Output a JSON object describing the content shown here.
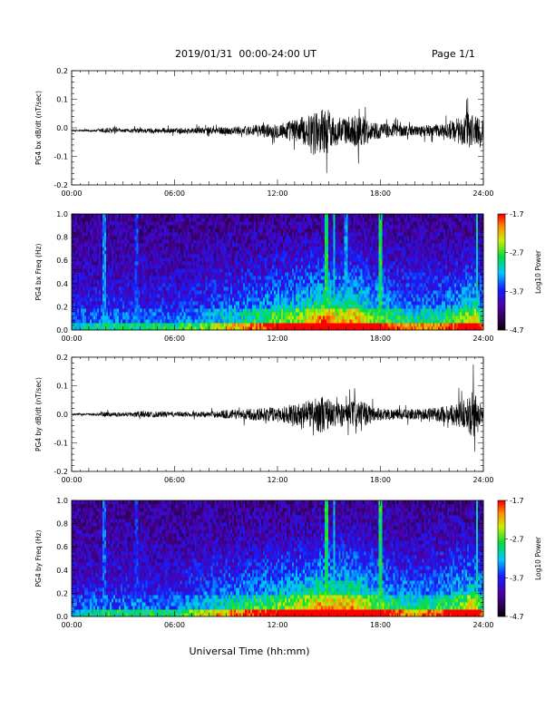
{
  "header": {
    "title": "2019/01/31  00:00-24:00 UT",
    "page": "Page 1/1"
  },
  "chart_data": [
    {
      "type": "line",
      "ylabel": "PG4 bx dB/dt (nT/sec)",
      "xlim": [
        0,
        24
      ],
      "ylim": [
        -0.2,
        0.2
      ],
      "x_ticks": [
        "00:00",
        "06:00",
        "12:00",
        "18:00",
        "24:00"
      ],
      "y_ticks": [
        "-0.2",
        "-0.1",
        "0.0",
        "0.1",
        "0.2"
      ],
      "baseline": -0.01,
      "envelope": [
        [
          0,
          0.005
        ],
        [
          1.5,
          0.01
        ],
        [
          2,
          0.025
        ],
        [
          3,
          0.012
        ],
        [
          4,
          0.02
        ],
        [
          6,
          0.02
        ],
        [
          8,
          0.025
        ],
        [
          9,
          0.03
        ],
        [
          10,
          0.035
        ],
        [
          11,
          0.05
        ],
        [
          12,
          0.06
        ],
        [
          13,
          0.09
        ],
        [
          14,
          0.13
        ],
        [
          14.8,
          0.2
        ],
        [
          15.2,
          0.12
        ],
        [
          16,
          0.1
        ],
        [
          16.7,
          0.14
        ],
        [
          17.5,
          0.07
        ],
        [
          18,
          0.06
        ],
        [
          19,
          0.05
        ],
        [
          20,
          0.04
        ],
        [
          21,
          0.045
        ],
        [
          22,
          0.06
        ],
        [
          23,
          0.14
        ],
        [
          23.5,
          0.15
        ],
        [
          24,
          0.08
        ]
      ]
    },
    {
      "type": "heatmap",
      "ylabel": "PG4 bx Freq (Hz)",
      "xlim": [
        0,
        24
      ],
      "ylim": [
        0,
        1.0
      ],
      "x_ticks": [
        "00:00",
        "06:00",
        "12:00",
        "18:00",
        "24:00"
      ],
      "y_ticks": [
        "0.0",
        "0.2",
        "0.4",
        "0.6",
        "0.8",
        "1.0"
      ],
      "colorbar": {
        "label": "Log10 Power",
        "min": -4.7,
        "max": -1.7,
        "ticks": [
          "-1.7",
          "-2.7",
          "-3.7",
          "-4.7"
        ]
      },
      "activity": [
        [
          0,
          0.25
        ],
        [
          2,
          0.3
        ],
        [
          4,
          0.3
        ],
        [
          6,
          0.3
        ],
        [
          8,
          0.4
        ],
        [
          10,
          0.5
        ],
        [
          12,
          0.65
        ],
        [
          13.5,
          0.75
        ],
        [
          14.5,
          0.95
        ],
        [
          15.5,
          0.85
        ],
        [
          16.5,
          0.9
        ],
        [
          17.5,
          0.7
        ],
        [
          18.5,
          0.6
        ],
        [
          20,
          0.5
        ],
        [
          22,
          0.55
        ],
        [
          23.5,
          0.8
        ],
        [
          24,
          0.5
        ]
      ],
      "spikes": [
        [
          1.9,
          0.7
        ],
        [
          3.8,
          0.55
        ],
        [
          14.85,
          1.0
        ],
        [
          15.3,
          0.8
        ],
        [
          16.0,
          0.7
        ],
        [
          18.0,
          1.0
        ],
        [
          23.6,
          0.9
        ]
      ]
    },
    {
      "type": "line",
      "ylabel": "PG4 by dB/dt (nT/sec)",
      "xlim": [
        0,
        24
      ],
      "ylim": [
        -0.2,
        0.2
      ],
      "x_ticks": [
        "00:00",
        "06:00",
        "12:00",
        "18:00",
        "24:00"
      ],
      "y_ticks": [
        "-0.2",
        "-0.1",
        "0.0",
        "0.1",
        "0.2"
      ],
      "baseline": 0.0,
      "envelope": [
        [
          0,
          0.005
        ],
        [
          1.5,
          0.01
        ],
        [
          2,
          0.02
        ],
        [
          3,
          0.015
        ],
        [
          4,
          0.025
        ],
        [
          6,
          0.02
        ],
        [
          8,
          0.02
        ],
        [
          9,
          0.035
        ],
        [
          10,
          0.04
        ],
        [
          11,
          0.05
        ],
        [
          12,
          0.06
        ],
        [
          13,
          0.08
        ],
        [
          14,
          0.11
        ],
        [
          14.6,
          0.15
        ],
        [
          15.2,
          0.1
        ],
        [
          16,
          0.09
        ],
        [
          16.7,
          0.11
        ],
        [
          17.5,
          0.07
        ],
        [
          18,
          0.05
        ],
        [
          19,
          0.04
        ],
        [
          20,
          0.04
        ],
        [
          21,
          0.05
        ],
        [
          22,
          0.07
        ],
        [
          23,
          0.12
        ],
        [
          23.5,
          0.2
        ],
        [
          24,
          0.06
        ]
      ]
    },
    {
      "type": "heatmap",
      "ylabel": "PG4 by Freq (Hz)",
      "xlim": [
        0,
        24
      ],
      "ylim": [
        0,
        1.0
      ],
      "x_ticks": [
        "00:00",
        "06:00",
        "12:00",
        "18:00",
        "24:00"
      ],
      "y_ticks": [
        "0.0",
        "0.2",
        "0.4",
        "0.6",
        "0.8",
        "1.0"
      ],
      "colorbar": {
        "label": "Log10 Power",
        "min": -4.7,
        "max": -1.7,
        "ticks": [
          "-1.7",
          "-2.7",
          "-3.7",
          "-4.7"
        ]
      },
      "activity": [
        [
          0,
          0.25
        ],
        [
          2,
          0.3
        ],
        [
          4,
          0.3
        ],
        [
          6,
          0.3
        ],
        [
          8,
          0.45
        ],
        [
          10,
          0.55
        ],
        [
          12,
          0.65
        ],
        [
          13.5,
          0.75
        ],
        [
          14.5,
          0.9
        ],
        [
          15.5,
          0.85
        ],
        [
          16.5,
          0.9
        ],
        [
          17.5,
          0.7
        ],
        [
          18.5,
          0.6
        ],
        [
          20,
          0.5
        ],
        [
          22,
          0.6
        ],
        [
          23.5,
          0.8
        ],
        [
          24,
          0.5
        ]
      ],
      "spikes": [
        [
          1.9,
          0.6
        ],
        [
          3.8,
          0.5
        ],
        [
          14.85,
          1.0
        ],
        [
          15.3,
          0.8
        ],
        [
          18.0,
          1.0
        ],
        [
          23.6,
          0.9
        ]
      ]
    }
  ],
  "footer": {
    "xlabel": "Universal Time (hh:mm)"
  }
}
